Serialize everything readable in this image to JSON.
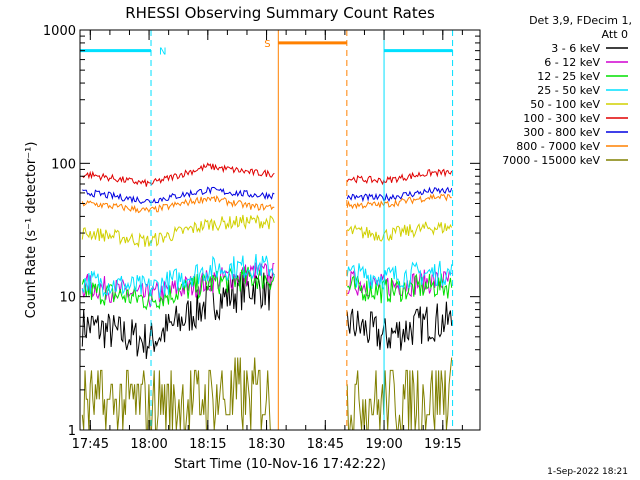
{
  "chart_data": {
    "type": "line",
    "title": "RHESSI Observing Summary Count Rates",
    "xlabel": "Start Time (10-Nov-16 17:42:22)",
    "ylabel": "Count Rate (s⁻¹ detector⁻¹)",
    "yscale": "log",
    "ylim": [
      1,
      1000
    ],
    "xlim": [
      "17:42:22",
      "19:24:30"
    ],
    "x_ticks": [
      "17:45",
      "18:00",
      "18:15",
      "18:30",
      "18:45",
      "19:00",
      "19:15"
    ],
    "y_ticks": [
      "1",
      "10",
      "100",
      "1000"
    ],
    "legend_title": [
      "Det 3,9, FDecim 1,",
      "Att 0"
    ],
    "legend_position": "right",
    "timestamp": "1-Sep-2022 18:21",
    "data_gap": [
      "18:32",
      "18:50"
    ],
    "series": [
      {
        "name": "3 - 6 keV",
        "color": "#000000",
        "values": [
          [
            17.75,
            6
          ],
          [
            18.0,
            4.6
          ],
          [
            18.25,
            9
          ],
          [
            18.45,
            12
          ],
          [
            19.0,
            5
          ],
          [
            19.2,
            6.5
          ]
        ]
      },
      {
        "name": "6 - 12 keV",
        "color": "#d000d0",
        "values": [
          [
            17.75,
            12
          ],
          [
            18.0,
            10
          ],
          [
            18.25,
            13
          ],
          [
            18.45,
            15
          ],
          [
            19.0,
            12
          ],
          [
            19.2,
            13
          ]
        ]
      },
      {
        "name": "12 - 25 keV",
        "color": "#00e000",
        "values": [
          [
            17.75,
            11
          ],
          [
            18.0,
            9.5
          ],
          [
            18.25,
            12.5
          ],
          [
            18.45,
            14
          ],
          [
            19.0,
            11
          ],
          [
            19.2,
            12
          ]
        ]
      },
      {
        "name": "25 - 50 keV",
        "color": "#00e0ff",
        "values": [
          [
            17.75,
            13
          ],
          [
            18.0,
            11.5
          ],
          [
            18.25,
            16
          ],
          [
            18.45,
            17
          ],
          [
            19.0,
            14
          ],
          [
            19.2,
            15
          ]
        ]
      },
      {
        "name": "50 - 100 keV",
        "color": "#d0d000",
        "values": [
          [
            17.75,
            30
          ],
          [
            18.0,
            26
          ],
          [
            18.25,
            35
          ],
          [
            18.45,
            37
          ],
          [
            19.0,
            29
          ],
          [
            19.2,
            33
          ]
        ]
      },
      {
        "name": "100 - 300 keV",
        "color": "#e00000",
        "values": [
          [
            17.75,
            82
          ],
          [
            18.0,
            70
          ],
          [
            18.25,
            95
          ],
          [
            18.45,
            85
          ],
          [
            19.0,
            74
          ],
          [
            19.2,
            85
          ]
        ]
      },
      {
        "name": "300 - 800 keV",
        "color": "#0000e0",
        "values": [
          [
            17.75,
            60
          ],
          [
            18.0,
            52
          ],
          [
            18.25,
            63
          ],
          [
            18.45,
            58
          ],
          [
            19.0,
            55
          ],
          [
            19.2,
            62
          ]
        ]
      },
      {
        "name": "800 - 7000 keV",
        "color": "#ff8000",
        "values": [
          [
            17.75,
            50
          ],
          [
            18.0,
            44
          ],
          [
            18.25,
            55
          ],
          [
            18.45,
            47
          ],
          [
            19.0,
            49
          ],
          [
            19.2,
            56
          ]
        ]
      },
      {
        "name": "7000 - 15000 keV",
        "color": "#808000",
        "values": [
          [
            17.75,
            1.6
          ],
          [
            18.0,
            1.4
          ],
          [
            18.25,
            2.2
          ],
          [
            18.45,
            2.6
          ],
          [
            19.0,
            1.8
          ],
          [
            19.2,
            2.5
          ]
        ]
      }
    ],
    "flags": [
      {
        "label": "N",
        "color": "#00e0ff",
        "segments": [
          [
            "17:42:22",
            "18:00:30"
          ],
          [
            "19:00:00",
            "19:17:30"
          ]
        ],
        "value": 700
      },
      {
        "label": "S",
        "color": "#ff8000",
        "segments": [
          [
            "18:33:00",
            "18:50:30"
          ]
        ],
        "value": 800
      }
    ]
  }
}
